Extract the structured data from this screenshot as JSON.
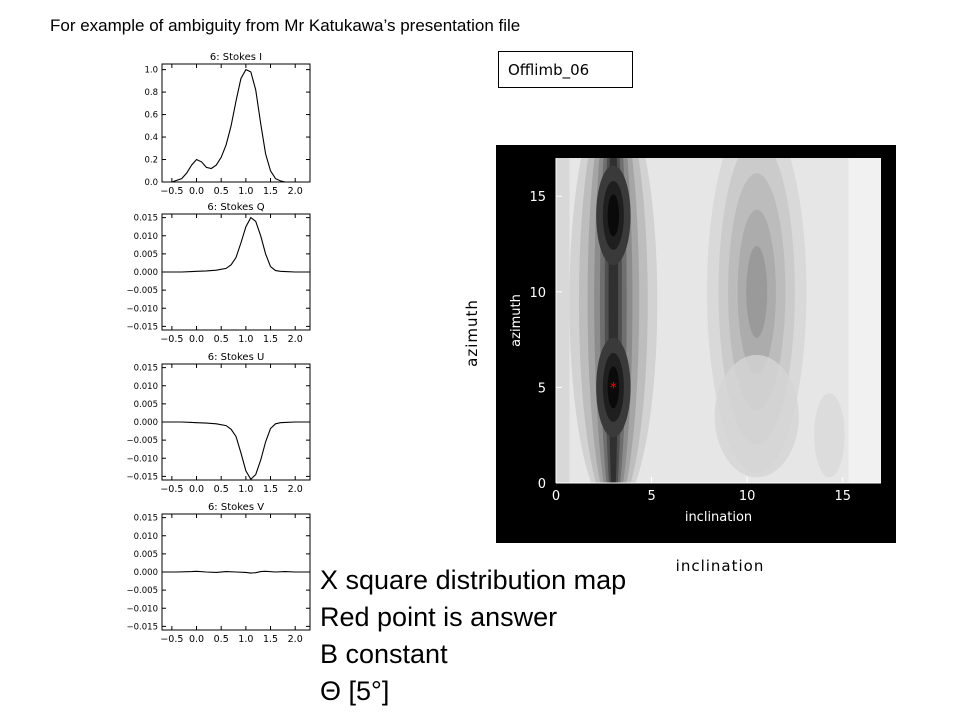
{
  "header": {
    "text": "For example of ambiguity from Mr Katukawa’s presentation file"
  },
  "slide_label": "Offlimb_06",
  "outer_labels": {
    "azimuth": "azimuth",
    "inclination": "inclination"
  },
  "notes": [
    "X square distribution map",
    "Red point is answer",
    "B constant",
    "Θ [5°]"
  ],
  "colors": {
    "marker": "#ff0000",
    "map_background": "#000000",
    "text": "#000000"
  },
  "chart_data": [
    {
      "type": "line",
      "title": "6: Stokes I",
      "xlim": [
        -0.7,
        2.3
      ],
      "ylim": [
        0.0,
        1.05
      ],
      "x_ticks": [
        -0.5,
        0.0,
        0.5,
        1.0,
        1.5,
        2.0
      ],
      "x_tick_labels": [
        "−0.5",
        "0.0",
        "0.5",
        "1.0",
        "1.5",
        "2.0"
      ],
      "y_ticks": [
        0.0,
        0.2,
        0.4,
        0.6,
        0.8,
        1.0
      ],
      "y_tick_labels": [
        "0.0",
        "0.2",
        "0.4",
        "0.6",
        "0.8",
        "1.0"
      ],
      "series": [
        {
          "x": [
            -0.7,
            -0.5,
            -0.3,
            -0.2,
            -0.1,
            0.0,
            0.1,
            0.2,
            0.3,
            0.4,
            0.5,
            0.6,
            0.7,
            0.8,
            0.9,
            1.0,
            1.1,
            1.2,
            1.3,
            1.4,
            1.5,
            1.6,
            1.7,
            1.8,
            1.9,
            2.0,
            2.1,
            2.3
          ],
          "y": [
            0.0,
            0.0,
            0.03,
            0.08,
            0.15,
            0.2,
            0.18,
            0.13,
            0.12,
            0.15,
            0.22,
            0.33,
            0.5,
            0.72,
            0.92,
            1.0,
            0.98,
            0.82,
            0.52,
            0.25,
            0.1,
            0.03,
            0.01,
            0.0,
            0.0,
            0.0,
            0.0,
            0.0
          ]
        }
      ]
    },
    {
      "type": "line",
      "title": "6: Stokes Q",
      "xlim": [
        -0.7,
        2.3
      ],
      "ylim": [
        -0.016,
        0.016
      ],
      "x_ticks": [
        -0.5,
        0.0,
        0.5,
        1.0,
        1.5,
        2.0
      ],
      "x_tick_labels": [
        "−0.5",
        "0.0",
        "0.5",
        "1.0",
        "1.5",
        "2.0"
      ],
      "y_ticks": [
        0.015,
        0.01,
        0.005,
        0.0,
        -0.005,
        -0.01,
        -0.015
      ],
      "y_tick_labels": [
        "0.015",
        "0.010",
        "0.005",
        "0.000",
        "−0.005",
        "−0.010",
        "−0.015"
      ],
      "series": [
        {
          "x": [
            -0.7,
            -0.5,
            -0.3,
            -0.1,
            0.0,
            0.2,
            0.4,
            0.6,
            0.7,
            0.8,
            0.9,
            1.0,
            1.1,
            1.2,
            1.3,
            1.4,
            1.5,
            1.6,
            1.7,
            1.8,
            2.0,
            2.3
          ],
          "y": [
            0.0,
            0.0,
            0.0,
            0.0001,
            0.0002,
            0.0003,
            0.0005,
            0.001,
            0.002,
            0.004,
            0.008,
            0.0125,
            0.015,
            0.014,
            0.01,
            0.005,
            0.0015,
            0.0004,
            0.0002,
            0.0001,
            0.0,
            0.0
          ]
        }
      ]
    },
    {
      "type": "line",
      "title": "6: Stokes U",
      "xlim": [
        -0.7,
        2.3
      ],
      "ylim": [
        -0.016,
        0.016
      ],
      "x_ticks": [
        -0.5,
        0.0,
        0.5,
        1.0,
        1.5,
        2.0
      ],
      "x_tick_labels": [
        "−0.5",
        "0.0",
        "0.5",
        "1.0",
        "1.5",
        "2.0"
      ],
      "y_ticks": [
        0.015,
        0.01,
        0.005,
        0.0,
        -0.005,
        -0.01,
        -0.015
      ],
      "y_tick_labels": [
        "0.015",
        "0.010",
        "0.005",
        "0.000",
        "−0.005",
        "−0.010",
        "−0.015"
      ],
      "series": [
        {
          "x": [
            -0.7,
            -0.5,
            -0.3,
            -0.1,
            0.0,
            0.2,
            0.4,
            0.6,
            0.7,
            0.8,
            0.9,
            1.0,
            1.1,
            1.2,
            1.3,
            1.4,
            1.5,
            1.6,
            1.7,
            1.8,
            2.0,
            2.3
          ],
          "y": [
            0.0,
            0.0,
            0.0,
            -0.0001,
            -0.0002,
            -0.0003,
            -0.0005,
            -0.001,
            -0.002,
            -0.004,
            -0.0085,
            -0.0135,
            -0.0158,
            -0.0145,
            -0.0105,
            -0.0055,
            -0.0018,
            -0.0005,
            -0.0002,
            -0.0001,
            0.0,
            0.0
          ]
        }
      ]
    },
    {
      "type": "line",
      "title": "6: Stokes V",
      "xlim": [
        -0.7,
        2.3
      ],
      "ylim": [
        -0.016,
        0.016
      ],
      "x_ticks": [
        -0.5,
        0.0,
        0.5,
        1.0,
        1.5,
        2.0
      ],
      "x_tick_labels": [
        "−0.5",
        "0.0",
        "0.5",
        "1.0",
        "1.5",
        "2.0"
      ],
      "y_ticks": [
        0.015,
        0.01,
        0.005,
        0.0,
        -0.005,
        -0.01,
        -0.015
      ],
      "y_tick_labels": [
        "0.015",
        "0.010",
        "0.005",
        "0.000",
        "−0.005",
        "−0.010",
        "−0.015"
      ],
      "series": [
        {
          "x": [
            -0.7,
            -0.4,
            -0.1,
            0.0,
            0.2,
            0.4,
            0.6,
            0.8,
            1.0,
            1.1,
            1.2,
            1.3,
            1.4,
            1.6,
            1.8,
            2.0,
            2.3
          ],
          "y": [
            0.0,
            0.0,
            0.0001,
            0.0002,
            0.0,
            -0.0001,
            0.0001,
            0.0,
            -0.0001,
            -0.0003,
            -0.0002,
            0.0001,
            0.0002,
            0.0,
            0.0001,
            0.0,
            0.0
          ]
        }
      ]
    },
    {
      "type": "heatmap",
      "xlabel": "inclination",
      "ylabel": "azimuth",
      "xlim": [
        0,
        17
      ],
      "ylim": [
        0,
        17
      ],
      "x_ticks": [
        0,
        5,
        10,
        15
      ],
      "y_ticks": [
        0,
        5,
        10,
        15
      ],
      "colormap": "grayscale (dark = low χ²)",
      "minima": [
        {
          "x": 3,
          "y": 14
        },
        {
          "x": 3,
          "y": 5
        }
      ],
      "secondary_trough": {
        "x": 10.5,
        "y": 10
      },
      "answer_point": {
        "x": 3,
        "y": 5,
        "color": "#ff0000",
        "marker": "*"
      }
    }
  ]
}
